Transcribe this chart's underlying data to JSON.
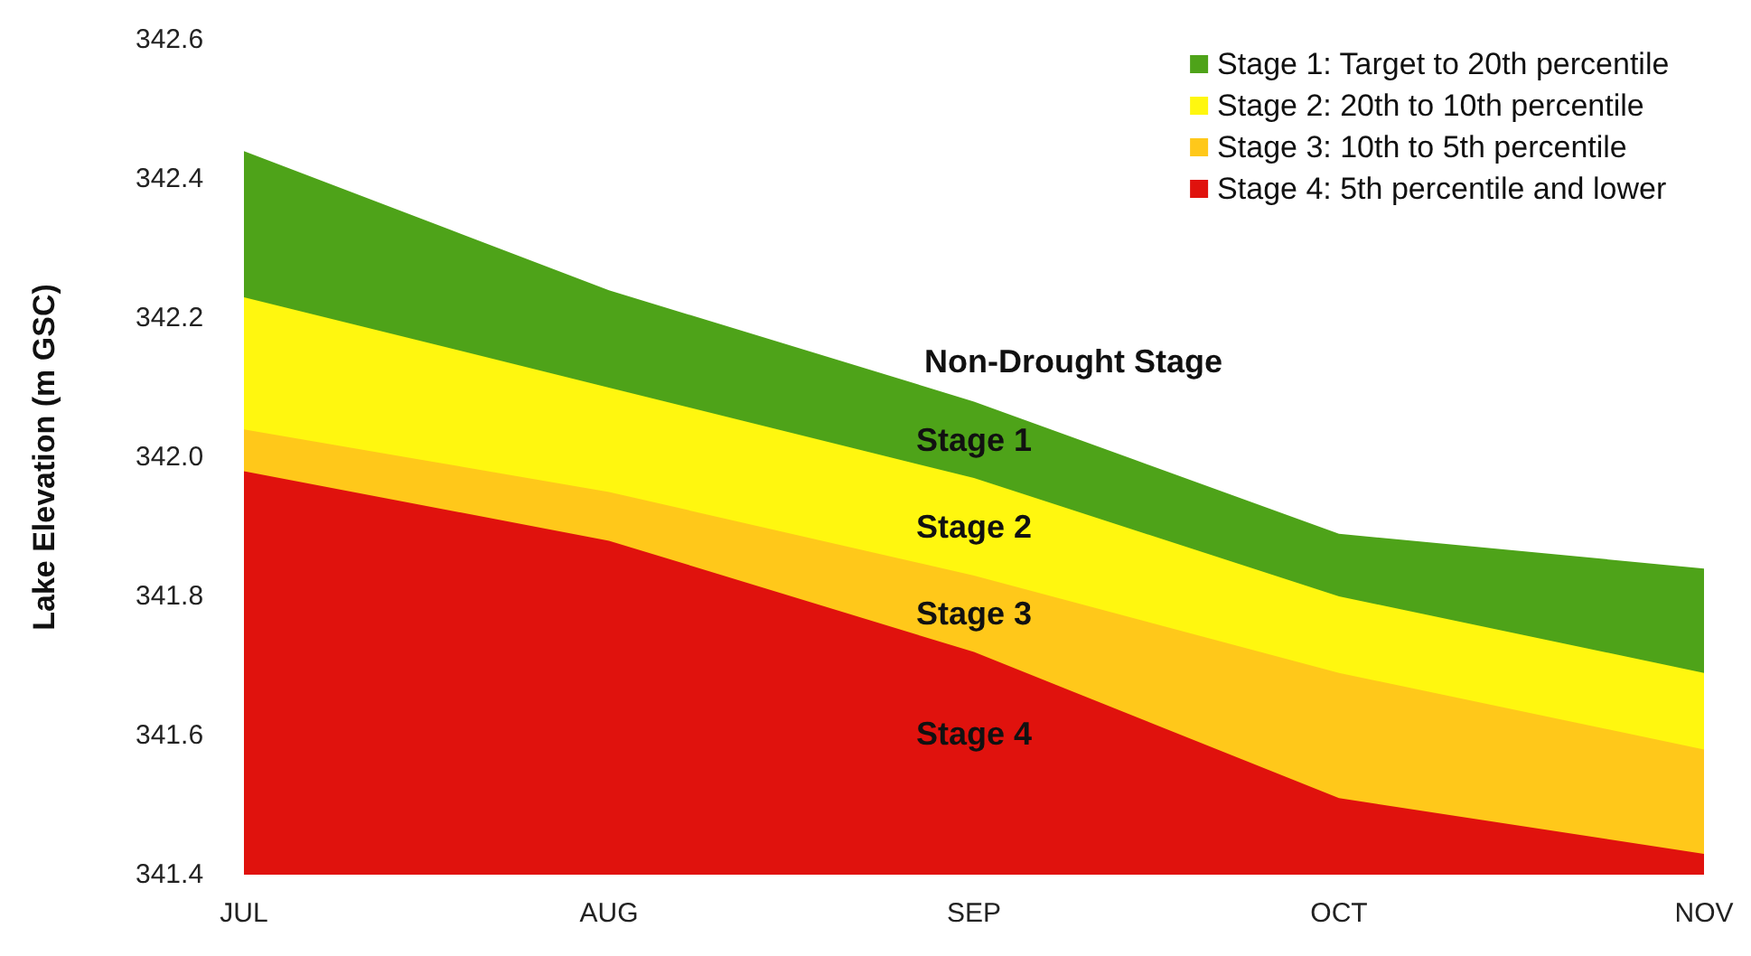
{
  "chart_data": {
    "type": "area",
    "ylabel": "Lake Elevation (m GSC)",
    "categories": [
      "JUL",
      "AUG",
      "SEP",
      "OCT",
      "NOV"
    ],
    "series": [
      {
        "name": "Stage 1: Target to 20th percentile",
        "color": "#4ea319",
        "values": [
          342.44,
          342.24,
          342.08,
          341.89,
          341.84
        ]
      },
      {
        "name": "Stage 2: 20th to 10th percentile",
        "color": "#fff70f",
        "values": [
          342.23,
          342.1,
          341.97,
          341.8,
          341.69
        ]
      },
      {
        "name": "Stage 3: 10th to 5th percentile",
        "color": "#ffc81a",
        "values": [
          342.04,
          341.95,
          341.83,
          341.69,
          341.58
        ]
      },
      {
        "name": "Stage 4: 5th percentile and lower",
        "color": "#e0120d",
        "values": [
          341.98,
          341.88,
          341.72,
          341.51,
          341.43
        ]
      }
    ],
    "ylim": [
      341.4,
      342.6
    ],
    "yticks": [
      {
        "value": 341.4,
        "label": "341.4"
      },
      {
        "value": 341.6,
        "label": "341.6"
      },
      {
        "value": 341.8,
        "label": "341.8"
      },
      {
        "value": 342,
        "label": "342.0"
      },
      {
        "value": 342.2,
        "label": "342.2"
      },
      {
        "value": 342.4,
        "label": "342.4"
      },
      {
        "value": 342.6,
        "label": "342.6"
      }
    ],
    "grid": false,
    "legend": "top right",
    "annotations": [
      "Non-Drought Stage",
      "Stage 1",
      "Stage 2",
      "Stage 3",
      "Stage 4"
    ]
  }
}
